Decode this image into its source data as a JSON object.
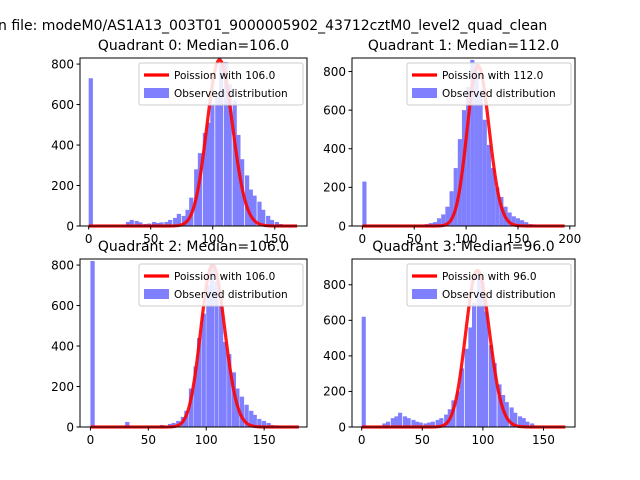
{
  "figure": {
    "suptitle": "n file: modeM0/AS1A13_003T01_9000005902_43712cztM0_level2_quad_clean"
  },
  "chart_data": [
    {
      "type": "bar",
      "title": "Quadrant 0: Median=106.0",
      "xlabel": "",
      "ylabel": "",
      "xlim": [
        -7,
        176
      ],
      "ylim": [
        0,
        830
      ],
      "xticks": [
        0,
        50,
        100,
        150
      ],
      "yticks": [
        0,
        200,
        400,
        600,
        800
      ],
      "legend_position": "top-right",
      "grid": false,
      "bin_width": 3.4,
      "series": [
        {
          "name": "Observed distribution",
          "kind": "histogram",
          "color": "#8080ff",
          "x": [
            0,
            30,
            33,
            37,
            40,
            44,
            47,
            51,
            54,
            57,
            61,
            64,
            68,
            71,
            75,
            78,
            81,
            85,
            88,
            92,
            95,
            98,
            102,
            105,
            109,
            112,
            116,
            119,
            122,
            126,
            129,
            132,
            136,
            139,
            143,
            146,
            150,
            153
          ],
          "values": [
            730,
            20,
            30,
            25,
            18,
            10,
            12,
            20,
            15,
            18,
            20,
            30,
            40,
            60,
            50,
            80,
            140,
            280,
            360,
            460,
            510,
            600,
            640,
            800,
            810,
            700,
            620,
            450,
            330,
            250,
            180,
            150,
            120,
            80,
            50,
            30,
            20,
            10
          ]
        },
        {
          "name": "Poission with 106.0",
          "kind": "poisson",
          "color": "#ff0000",
          "mean": 106.0,
          "peak": 820,
          "x_range": [
            0,
            168
          ]
        }
      ]
    },
    {
      "type": "bar",
      "title": "Quadrant 1: Median=112.0",
      "xlabel": "",
      "ylabel": "",
      "xlim": [
        -10,
        205
      ],
      "ylim": [
        0,
        870
      ],
      "xticks": [
        0,
        50,
        100,
        150,
        200
      ],
      "yticks": [
        0,
        200,
        400,
        600,
        800
      ],
      "legend_position": "top-right",
      "grid": false,
      "bin_width": 4,
      "series": [
        {
          "name": "Observed distribution",
          "kind": "histogram",
          "color": "#8080ff",
          "x": [
            0,
            60,
            64,
            68,
            72,
            76,
            80,
            84,
            88,
            92,
            96,
            100,
            104,
            108,
            112,
            116,
            120,
            124,
            128,
            132,
            136,
            140,
            144,
            148,
            152,
            156,
            160,
            164
          ],
          "values": [
            230,
            10,
            15,
            20,
            40,
            60,
            100,
            180,
            300,
            450,
            600,
            720,
            860,
            840,
            700,
            550,
            420,
            300,
            200,
            150,
            100,
            70,
            50,
            40,
            30,
            20,
            10,
            8
          ]
        },
        {
          "name": "Poission with 112.0",
          "kind": "poisson",
          "color": "#ff0000",
          "mean": 112.0,
          "peak": 830,
          "x_range": [
            0,
            195
          ]
        }
      ]
    },
    {
      "type": "bar",
      "title": "Quadrant 2: Median=106.0",
      "xlabel": "",
      "ylabel": "",
      "xlim": [
        -9,
        187
      ],
      "ylim": [
        0,
        830
      ],
      "xticks": [
        0,
        50,
        100,
        150
      ],
      "yticks": [
        0,
        200,
        400,
        600,
        800
      ],
      "legend_position": "top-right",
      "grid": false,
      "bin_width": 3.7,
      "series": [
        {
          "name": "Observed distribution",
          "kind": "histogram",
          "color": "#8080ff",
          "x": [
            0,
            30,
            60,
            67,
            70,
            74,
            78,
            81,
            85,
            89,
            92,
            96,
            100,
            103,
            107,
            111,
            114,
            118,
            122,
            125,
            129,
            133,
            137,
            140,
            144,
            148,
            152,
            155,
            159,
            163
          ],
          "values": [
            820,
            25,
            10,
            15,
            20,
            30,
            50,
            80,
            190,
            300,
            440,
            560,
            700,
            800,
            720,
            600,
            420,
            360,
            270,
            190,
            150,
            110,
            80,
            60,
            40,
            30,
            20,
            10,
            8,
            5
          ]
        },
        {
          "name": "Poission with 106.0",
          "kind": "poisson",
          "color": "#ff0000",
          "mean": 106.0,
          "peak": 800,
          "x_range": [
            0,
            180
          ]
        }
      ]
    },
    {
      "type": "bar",
      "title": "Quadrant 3: Median=96.0",
      "xlabel": "",
      "ylabel": "",
      "xlim": [
        -8,
        176
      ],
      "ylim": [
        0,
        945
      ],
      "xticks": [
        0,
        50,
        100,
        150
      ],
      "yticks": [
        0,
        200,
        400,
        600,
        800
      ],
      "legend_position": "top-right",
      "grid": false,
      "bin_width": 3.4,
      "series": [
        {
          "name": "Observed distribution",
          "kind": "histogram",
          "color": "#8080ff",
          "x": [
            0,
            17,
            20,
            24,
            27,
            30,
            34,
            37,
            41,
            44,
            47,
            51,
            54,
            57,
            61,
            64,
            68,
            71,
            74,
            78,
            81,
            85,
            88,
            91,
            95,
            98,
            101,
            105,
            108,
            112,
            115,
            118,
            122,
            125,
            129,
            132,
            135,
            139
          ],
          "values": [
            620,
            20,
            30,
            50,
            60,
            80,
            60,
            50,
            40,
            30,
            25,
            20,
            25,
            30,
            40,
            50,
            70,
            100,
            150,
            200,
            330,
            440,
            560,
            700,
            870,
            820,
            650,
            460,
            360,
            240,
            180,
            140,
            110,
            80,
            60,
            50,
            30,
            20
          ]
        },
        {
          "name": "Poission with 96.0",
          "kind": "poisson",
          "color": "#ff0000",
          "mean": 96.0,
          "peak": 880,
          "x_range": [
            0,
            168
          ]
        }
      ]
    }
  ]
}
